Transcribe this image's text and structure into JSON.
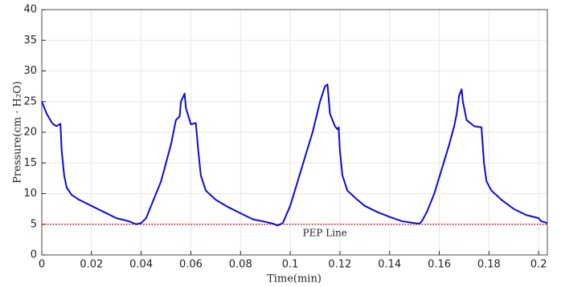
{
  "chart_data": {
    "type": "line",
    "xlabel": "Time(min)",
    "ylabel": "Pressure(cm · H₂O)",
    "x": [
      0,
      0.002,
      0.004,
      0.005,
      0.006,
      0.0075,
      0.008,
      0.009,
      0.01,
      0.012,
      0.015,
      0.02,
      0.025,
      0.03,
      0.035,
      0.038,
      0.04,
      0.042,
      0.044,
      0.046,
      0.048,
      0.05,
      0.052,
      0.054,
      0.0555,
      0.056,
      0.0575,
      0.058,
      0.06,
      0.062,
      0.063,
      0.064,
      0.066,
      0.07,
      0.075,
      0.08,
      0.085,
      0.09,
      0.093,
      0.095,
      0.097,
      0.1,
      0.103,
      0.106,
      0.109,
      0.112,
      0.114,
      0.115,
      0.116,
      0.118,
      0.119,
      0.1195,
      0.12,
      0.121,
      0.123,
      0.127,
      0.13,
      0.135,
      0.14,
      0.145,
      0.15,
      0.152,
      0.153,
      0.155,
      0.158,
      0.161,
      0.164,
      0.166,
      0.167,
      0.168,
      0.169,
      0.1695,
      0.171,
      0.174,
      0.177,
      0.178,
      0.179,
      0.181,
      0.185,
      0.19,
      0.195,
      0.2,
      0.201,
      0.2035
    ],
    "series": [
      {
        "name": "Pressure",
        "color": "#0a0adc",
        "values": [
          25,
          23,
          21.6,
          21.2,
          21,
          21.4,
          17,
          13,
          11,
          9.8,
          9,
          8,
          7,
          6,
          5.5,
          5,
          5.2,
          6,
          8,
          10,
          12,
          15,
          18,
          22,
          22.6,
          25,
          26.3,
          24,
          21.3,
          21.5,
          17,
          13,
          10.5,
          9,
          7.8,
          6.8,
          5.8,
          5.4,
          5.1,
          4.8,
          5.2,
          8,
          12,
          16,
          20,
          25,
          27.5,
          27.8,
          23,
          21,
          20.5,
          20.8,
          17,
          13,
          10.5,
          9,
          8,
          7,
          6.2,
          5.5,
          5.2,
          5.1,
          5.5,
          7,
          10,
          14,
          18,
          21,
          23,
          26,
          27,
          25,
          22,
          21,
          20.8,
          15,
          12,
          10.5,
          9,
          7.5,
          6.5,
          6,
          5.5,
          5.2
        ]
      }
    ],
    "reference_line": {
      "y": 5,
      "label": "PEP Line",
      "color": "#e00000",
      "style": "dotted"
    },
    "xlim": [
      0,
      0.2035
    ],
    "ylim": [
      0,
      40
    ],
    "xticks": [
      0,
      0.02,
      0.04,
      0.06,
      0.08,
      0.1,
      0.12,
      0.14,
      0.16,
      0.18,
      0.2
    ],
    "yticks": [
      0,
      5,
      10,
      15,
      20,
      25,
      30,
      35,
      40
    ],
    "grid": true
  }
}
